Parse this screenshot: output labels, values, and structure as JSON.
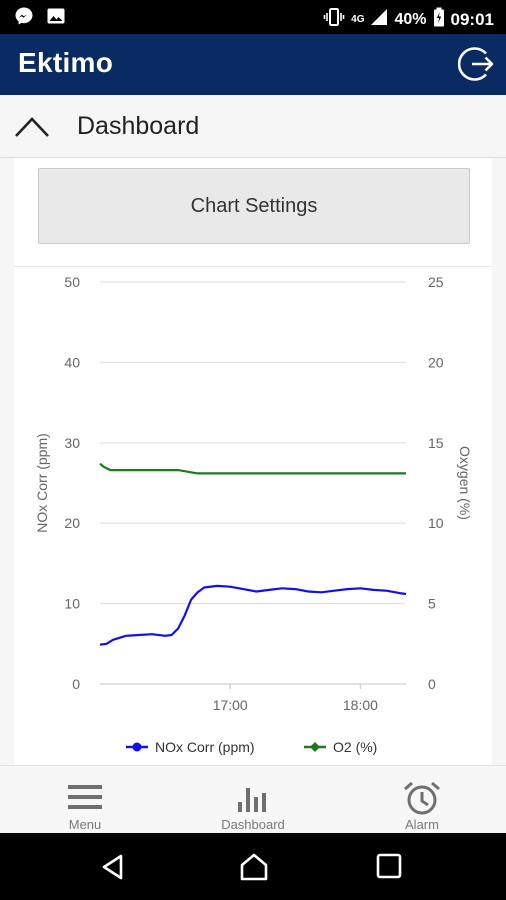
{
  "status_bar": {
    "battery_percent": "40%",
    "time": "09:01",
    "network": "4G"
  },
  "app": {
    "title": "Ektimo"
  },
  "section": {
    "title": "Dashboard"
  },
  "chart_settings_label": "Chart Settings",
  "chart_data": {
    "type": "line",
    "x_ticks": [
      "17:00",
      "18:00"
    ],
    "left_axis": {
      "label": "NOx Corr (ppm)",
      "ylim": [
        0,
        50
      ],
      "ticks": [
        "0",
        "10",
        "20",
        "30",
        "40",
        "50"
      ]
    },
    "right_axis": {
      "label": "Oxygen (%)",
      "ylim": [
        0,
        25
      ],
      "ticks": [
        "0",
        "5",
        "10",
        "15",
        "20",
        "25"
      ]
    },
    "x_range_hours": [
      16.0,
      18.35
    ],
    "series": [
      {
        "name": "NOx Corr (ppm)",
        "axis": "left",
        "color": "#1010ee",
        "x": [
          16.0,
          16.05,
          16.1,
          16.2,
          16.3,
          16.4,
          16.5,
          16.55,
          16.6,
          16.65,
          16.7,
          16.75,
          16.8,
          16.9,
          17.0,
          17.1,
          17.2,
          17.3,
          17.4,
          17.5,
          17.6,
          17.7,
          17.8,
          17.9,
          18.0,
          18.1,
          18.2,
          18.3,
          18.35
        ],
        "values": [
          4.9,
          5.0,
          5.5,
          6.0,
          6.1,
          6.2,
          6.0,
          6.1,
          6.9,
          8.5,
          10.5,
          11.4,
          12.0,
          12.2,
          12.1,
          11.8,
          11.5,
          11.7,
          11.9,
          11.8,
          11.5,
          11.4,
          11.6,
          11.8,
          11.9,
          11.7,
          11.6,
          11.3,
          11.2
        ]
      },
      {
        "name": "O2 (%)",
        "axis": "right",
        "color": "#1c7a1c",
        "x": [
          16.0,
          16.03,
          16.08,
          16.2,
          16.4,
          16.6,
          16.75,
          16.9,
          17.1,
          17.3,
          17.5,
          17.7,
          17.9,
          18.1,
          18.3,
          18.35
        ],
        "values": [
          13.7,
          13.5,
          13.3,
          13.3,
          13.3,
          13.3,
          13.1,
          13.1,
          13.1,
          13.1,
          13.1,
          13.1,
          13.1,
          13.1,
          13.1,
          13.1
        ]
      }
    ],
    "legend_position": "bottom",
    "grid": true
  },
  "legend": [
    {
      "label": "NOx Corr (ppm)"
    },
    {
      "label": "O2 (%)"
    }
  ],
  "bottom_nav": [
    {
      "label": "Menu"
    },
    {
      "label": "Dashboard"
    },
    {
      "label": "Alarm"
    }
  ]
}
